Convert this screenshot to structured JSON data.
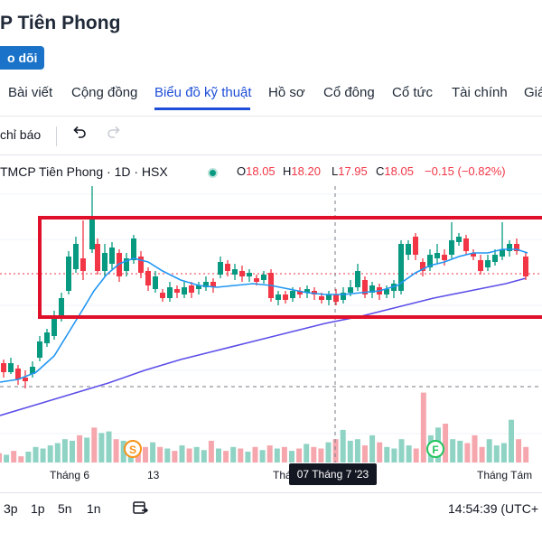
{
  "header": {
    "title": "P Tiên Phong",
    "follow_label": "o dõi"
  },
  "nav": {
    "tabs": [
      {
        "label": "Bài viết"
      },
      {
        "label": "Cộng đồng"
      },
      {
        "label": "Biểu đồ kỹ thuật"
      },
      {
        "label": "Hồ sơ"
      },
      {
        "label": "Cổ đông"
      },
      {
        "label": "Cổ tức"
      },
      {
        "label": "Tài chính"
      },
      {
        "label": "Giá"
      }
    ],
    "active_index": 2
  },
  "toolbar": {
    "indicators_label": "chỉ báo",
    "undo_icon": "undo-icon",
    "redo_icon": "redo-icon"
  },
  "legend": {
    "symbol": "TMCP Tiên Phong · 1D · HSX",
    "open_label": "O",
    "open": "18.05",
    "high_label": "H",
    "high": "18.20",
    "low_label": "L",
    "low": "17.95",
    "close_label": "C",
    "close": "18.05",
    "change": "−0.15 (−0.82%)"
  },
  "chart_data": {
    "type": "candlestick",
    "colors": {
      "up": "#089981",
      "down": "#f23645",
      "ma_short": "#2196f3",
      "ma_long": "#5c4ee8",
      "highlight_box": "#e0102a",
      "volume_up": "#8fd3c4",
      "volume_down": "#f6a7ae"
    },
    "volume_relative": [
      0.12,
      0.1,
      0.15,
      0.08,
      0.14,
      0.2,
      0.18,
      0.22,
      0.25,
      0.3,
      0.28,
      0.35,
      0.32,
      0.45,
      0.38,
      0.4,
      0.3,
      0.28,
      0.25,
      0.22,
      0.2,
      0.26,
      0.2,
      0.18,
      0.15,
      0.22,
      0.18,
      0.2,
      0.16,
      0.28,
      0.18,
      0.15,
      0.2,
      0.18,
      0.14,
      0.2,
      0.16,
      0.22,
      0.18,
      0.2,
      0.15,
      0.18,
      0.24,
      0.2,
      0.18,
      0.26,
      0.3,
      0.42,
      0.28,
      0.3,
      0.22,
      0.35,
      0.26,
      0.2,
      0.18,
      0.3,
      0.22,
      0.18,
      0.9,
      0.35,
      0.45,
      0.5,
      0.3,
      0.28,
      0.25,
      0.35,
      0.2,
      0.3,
      0.22,
      0.25,
      0.55,
      0.3,
      0.2
    ],
    "markers": [
      {
        "label": "S"
      },
      {
        "label": "F"
      }
    ]
  },
  "xaxis": {
    "labels": [
      "Tháng 6",
      "13",
      "Thá",
      "Tháng Tám"
    ],
    "crosshair_date": "07 Tháng 7 '23"
  },
  "bottombar": {
    "periods": [
      "3p",
      "1p",
      "5n",
      "1n"
    ],
    "calendar_icon": "calendar-range-icon",
    "time": "14:54:39 (UTC+"
  }
}
